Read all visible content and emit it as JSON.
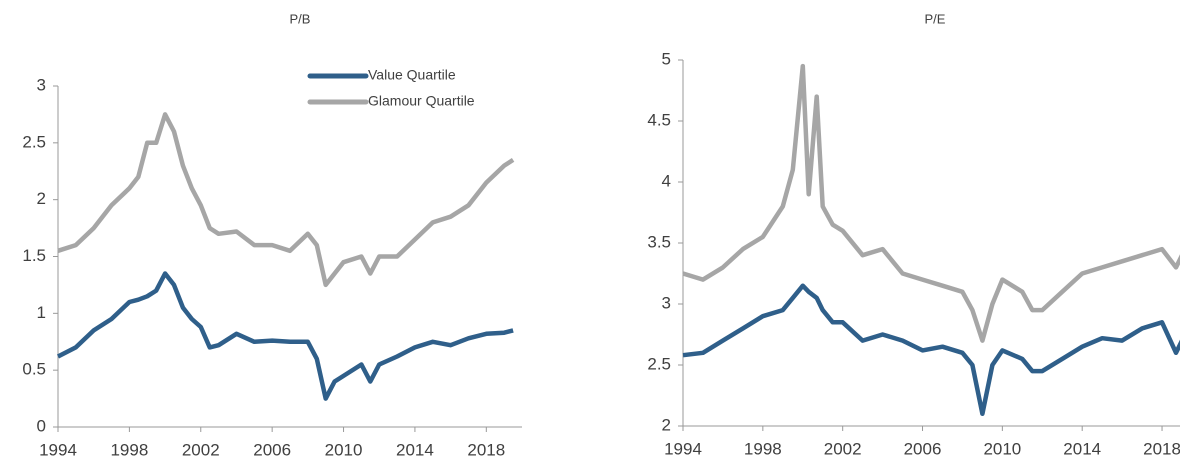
{
  "chart_data": [
    {
      "type": "line",
      "title": "P/B",
      "x": [
        1994,
        1995,
        1996,
        1997,
        1998,
        1998.5,
        1999,
        1999.5,
        2000,
        2000.5,
        2001,
        2001.5,
        2002,
        2002.5,
        2003,
        2004,
        2005,
        2006,
        2007,
        2008,
        2008.5,
        2009,
        2009.5,
        2010,
        2011,
        2011.5,
        2012,
        2013,
        2014,
        2015,
        2016,
        2017,
        2018,
        2019,
        2019.5
      ],
      "series": [
        {
          "name": "Value Quartile",
          "color": "#2f5f8a",
          "values": [
            0.62,
            0.7,
            0.85,
            0.95,
            1.1,
            1.12,
            1.15,
            1.2,
            1.35,
            1.25,
            1.05,
            0.95,
            0.88,
            0.7,
            0.72,
            0.82,
            0.75,
            0.76,
            0.75,
            0.75,
            0.6,
            0.25,
            0.4,
            0.45,
            0.55,
            0.4,
            0.55,
            0.62,
            0.7,
            0.75,
            0.72,
            0.78,
            0.82,
            0.83,
            0.85
          ]
        },
        {
          "name": "Glamour Quartile",
          "color": "#a6a6a6",
          "values": [
            1.55,
            1.6,
            1.75,
            1.95,
            2.1,
            2.2,
            2.5,
            2.5,
            2.75,
            2.6,
            2.3,
            2.1,
            1.95,
            1.75,
            1.7,
            1.72,
            1.6,
            1.6,
            1.55,
            1.7,
            1.6,
            1.25,
            1.35,
            1.45,
            1.5,
            1.35,
            1.5,
            1.5,
            1.65,
            1.8,
            1.85,
            1.95,
            2.15,
            2.3,
            2.35
          ]
        }
      ],
      "xlim": [
        1994,
        2020
      ],
      "xticks": [
        1994,
        1998,
        2002,
        2006,
        2010,
        2014,
        2018
      ],
      "ylim": [
        0,
        3
      ],
      "yticks": [
        0,
        0.5,
        1,
        1.5,
        2,
        2.5,
        3
      ]
    },
    {
      "type": "line",
      "title": "P/E",
      "x": [
        1994,
        1995,
        1996,
        1997,
        1998,
        1999,
        1999.5,
        2000,
        2000.3,
        2000.7,
        2001,
        2001.5,
        2002,
        2003,
        2004,
        2005,
        2006,
        2007,
        2008,
        2008.5,
        2009,
        2009.5,
        2010,
        2011,
        2011.5,
        2012,
        2013,
        2014,
        2015,
        2016,
        2017,
        2018,
        2018.7,
        2019
      ],
      "series": [
        {
          "color": "#2f5f8a",
          "values": [
            2.58,
            2.6,
            2.7,
            2.8,
            2.9,
            2.95,
            3.05,
            3.15,
            3.1,
            3.05,
            2.95,
            2.85,
            2.85,
            2.7,
            2.75,
            2.7,
            2.62,
            2.65,
            2.6,
            2.5,
            2.1,
            2.5,
            2.62,
            2.55,
            2.45,
            2.45,
            2.55,
            2.65,
            2.72,
            2.7,
            2.8,
            2.85,
            2.6,
            2.7
          ]
        },
        {
          "color": "#a6a6a6",
          "values": [
            3.25,
            3.2,
            3.3,
            3.45,
            3.55,
            3.8,
            4.1,
            4.95,
            3.9,
            4.7,
            3.8,
            3.65,
            3.6,
            3.4,
            3.45,
            3.25,
            3.2,
            3.15,
            3.1,
            2.95,
            2.7,
            3.0,
            3.2,
            3.1,
            2.95,
            2.95,
            3.1,
            3.25,
            3.3,
            3.35,
            3.4,
            3.45,
            3.3,
            3.4
          ]
        }
      ],
      "xlim": [
        1994,
        2018.9
      ],
      "xticks": [
        1994,
        1998,
        2002,
        2006,
        2010,
        2014,
        2018
      ],
      "ylim": [
        2,
        5
      ],
      "yticks": [
        2,
        2.5,
        3,
        3.5,
        4,
        4.5,
        5
      ]
    }
  ]
}
